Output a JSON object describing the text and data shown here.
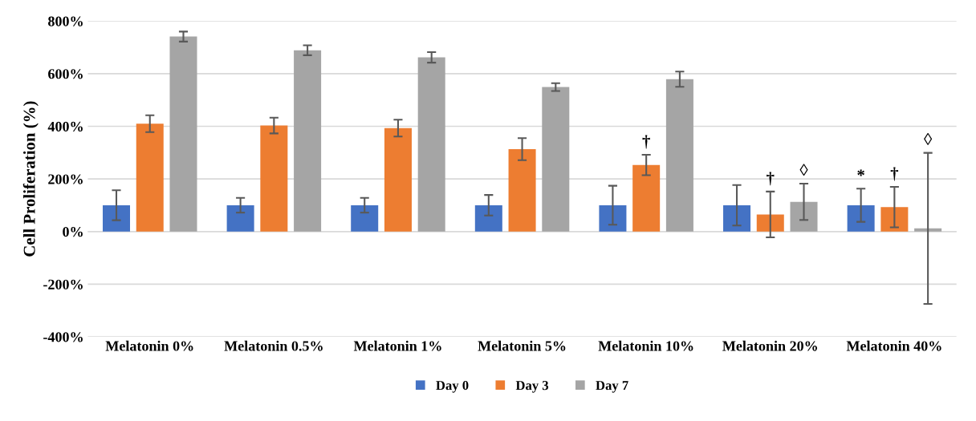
{
  "chart_data": {
    "type": "bar",
    "ylabel": "Cell Proliferation (%)",
    "categories": [
      "Melatonin 0%",
      "Melatonin 0.5%",
      "Melatonin 1%",
      "Melatonin 5%",
      "Melatonin 10%",
      "Melatonin 20%",
      "Melatonin 40%"
    ],
    "series": [
      {
        "name": "Day 0",
        "color": "#4472c4",
        "values": [
          100,
          100,
          100,
          100,
          100,
          100,
          100
        ],
        "errors": [
          57,
          28,
          28,
          39,
          74,
          77,
          63
        ]
      },
      {
        "name": "Day 3",
        "color": "#ed7d31",
        "values": [
          410,
          403,
          393,
          313,
          253,
          65,
          93
        ],
        "errors": [
          32,
          30,
          32,
          42,
          39,
          87,
          77
        ]
      },
      {
        "name": "Day 7",
        "color": "#a5a5a5",
        "values": [
          741,
          689,
          662,
          549,
          579,
          113,
          12
        ],
        "errors": [
          19,
          19,
          20,
          15,
          29,
          69,
          287
        ]
      }
    ],
    "ylim": [
      -400,
      800
    ],
    "yticks": [
      {
        "value": -400,
        "label": "-400%"
      },
      {
        "value": -200,
        "label": "-200%"
      },
      {
        "value": 0,
        "label": "0%"
      },
      {
        "value": 200,
        "label": "200%"
      },
      {
        "value": 400,
        "label": "400%"
      },
      {
        "value": 600,
        "label": "600%"
      },
      {
        "value": 800,
        "label": "800%"
      }
    ],
    "grid": "y",
    "legend": "bottom",
    "annotations": [
      {
        "text": "†",
        "x": "Melatonin 10%",
        "y": 253
      },
      {
        "text": "†",
        "x": "Melatonin 20%",
        "y": 65
      },
      {
        "text": "◊",
        "x": "Melatonin 20%",
        "y": 113
      },
      {
        "text": "*",
        "x": "Melatonin 40%",
        "y": 100
      },
      {
        "text": "†",
        "x": "Melatonin 40%",
        "y": 93
      },
      "◊"
    ]
  }
}
